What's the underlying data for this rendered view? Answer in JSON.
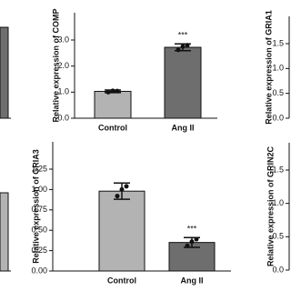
{
  "chart_data": [
    {
      "type": "bar",
      "ylabel": "Relative expression of COMP",
      "categories": [
        "Control",
        "Ang II"
      ],
      "values": [
        1.03,
        2.72
      ],
      "errors": [
        0.05,
        0.13
      ],
      "points": [
        [
          1.0,
          1.05,
          1.04
        ],
        [
          2.62,
          2.75,
          2.8
        ]
      ],
      "colors": [
        "#b3b3b3",
        "#6e6e6e"
      ],
      "significance": [
        null,
        "***"
      ],
      "ylim": [
        0,
        3
      ],
      "yticks": [
        {
          "value": 0,
          "label": "0.0"
        },
        {
          "value": 1,
          "label": "1.0"
        },
        {
          "value": 2,
          "label": "2.0"
        },
        {
          "value": 3,
          "label": "3.0"
        }
      ]
    },
    {
      "type": "bar",
      "ylabel": "Relative expression of GRIA1",
      "ylim": [
        0,
        1.5
      ],
      "yticks": [
        {
          "value": 0,
          "label": "0.0"
        },
        {
          "value": 0.5,
          "label": "0.5"
        },
        {
          "value": 1,
          "label": "1.0"
        },
        {
          "value": 1.5,
          "label": "1.5"
        }
      ]
    },
    {
      "type": "bar",
      "ylabel": "Relative expression of GRIA3",
      "categories": [
        "Control",
        "Ang II"
      ],
      "values": [
        0.98,
        0.35
      ],
      "errors": [
        0.1,
        0.06
      ],
      "points": [
        [
          0.92,
          1.0,
          1.04
        ],
        [
          0.31,
          0.36,
          0.39
        ]
      ],
      "colors": [
        "#b3b3b3",
        "#6e6e6e"
      ],
      "significance": [
        null,
        "***"
      ],
      "ylim": [
        0,
        1.25
      ],
      "yticks": [
        {
          "value": 0,
          "label": "0.00"
        },
        {
          "value": 0.25,
          "label": "0.25"
        },
        {
          "value": 0.5,
          "label": "0.50"
        },
        {
          "value": 0.75,
          "label": "0.75"
        },
        {
          "value": 1,
          "label": "1.00"
        },
        {
          "value": 1.25,
          "label": "1.25"
        }
      ]
    },
    {
      "type": "bar",
      "ylabel": "Relative expression of GRIN2C",
      "ylim": [
        0,
        1.5
      ],
      "yticks": [
        {
          "value": 0,
          "label": "0.0"
        },
        {
          "value": 0.5,
          "label": "0.5"
        },
        {
          "value": 1,
          "label": "1.0"
        },
        {
          "value": 1.5,
          "label": "1.5"
        }
      ]
    }
  ]
}
